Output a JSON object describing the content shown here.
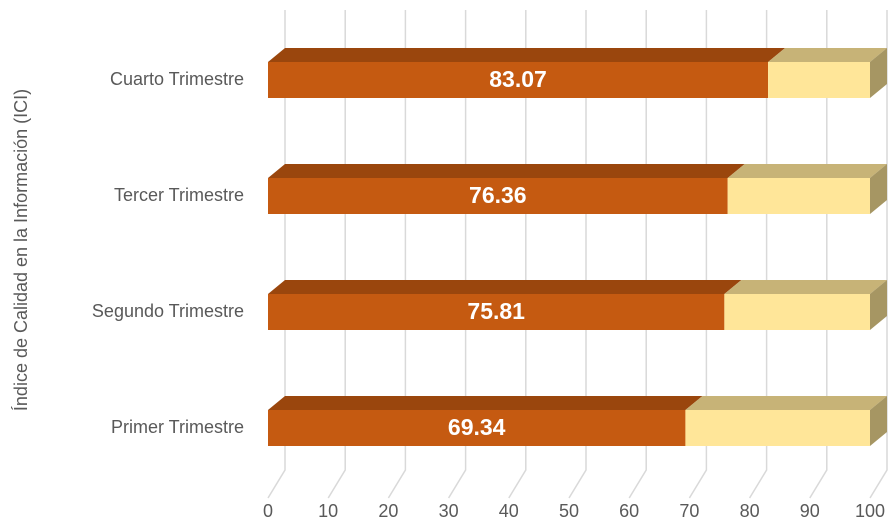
{
  "chart_data": {
    "type": "bar",
    "orientation": "horizontal",
    "stacked": true,
    "three_d": true,
    "y_label": "Índice de Calidad en la Información (ICI)",
    "categories": [
      "Primer Trimestre",
      "Segundo Trimestre",
      "Tercer Trimestre",
      "Cuarto Trimestre"
    ],
    "series": [
      {
        "color": "#c55a11",
        "values": [
          69.34,
          75.81,
          76.36,
          83.07
        ]
      },
      {
        "color": "#ffe699",
        "values": [
          30.66,
          24.19,
          23.64,
          16.93
        ]
      }
    ],
    "xlim": [
      0,
      100
    ],
    "xticks": [
      0,
      10,
      20,
      30,
      40,
      50,
      60,
      70,
      80,
      90,
      100
    ],
    "grid": true
  }
}
